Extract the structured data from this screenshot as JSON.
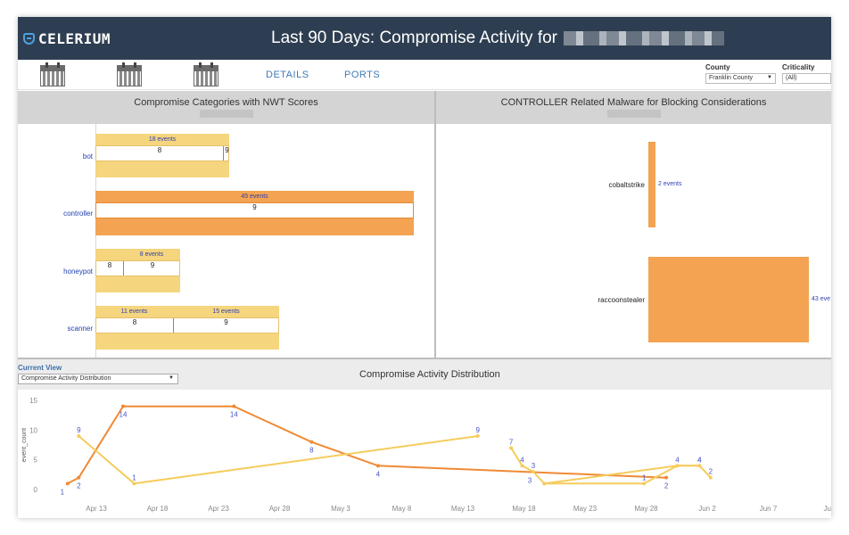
{
  "header": {
    "logo_text": "CELERIUM",
    "title": "Last 90 Days: Compromise Activity for"
  },
  "toolbar": {
    "calendar_icons": [
      "calendar-icon",
      "calendar-icon",
      "calendar-icon"
    ],
    "links": {
      "details": "DETAILS",
      "ports": "PORTS"
    },
    "county": {
      "label": "County",
      "value": "Franklin County"
    },
    "criticality": {
      "label": "Criticality",
      "value": "(All)"
    }
  },
  "left_panel": {
    "title": "Compromise Categories with NWT Scores",
    "categories": [
      {
        "label": "bot",
        "segments": [
          {
            "events": "18 events",
            "score": "8"
          }
        ],
        "extra_score": "9"
      },
      {
        "label": "controller",
        "segments": [
          {
            "events": "45 events",
            "score": "9"
          }
        ]
      },
      {
        "label": "honeypot",
        "segments": [
          {
            "events": "8 events",
            "score": "9"
          }
        ],
        "lead_score": "8"
      },
      {
        "label": "scanner",
        "segments": [
          {
            "events": "11 events",
            "score": "8"
          },
          {
            "events": "15 events",
            "score": "9"
          }
        ]
      }
    ]
  },
  "right_panel": {
    "title": "CONTROLLER Related Malware for Blocking Considerations",
    "malware": [
      {
        "label": "cobaltstrike",
        "events": "2 events",
        "count": 2
      },
      {
        "label": "raccoonstealer",
        "events": "43 eve",
        "count": 43
      }
    ]
  },
  "bottom": {
    "current_view_label": "Current View",
    "current_view_value": "Compromise Activity Distribution",
    "title": "Compromise Activity Distribution"
  },
  "colors": {
    "header_bg": "#2e3e52",
    "orange": "#f3a352",
    "yellow": "#f5d57e",
    "label_blue": "#2d3fb5"
  },
  "chart_data": {
    "type": "line",
    "title": "Compromise Activity Distribution",
    "ylabel": "event_count",
    "ylim": [
      0,
      15
    ],
    "yticks": [
      0,
      5,
      10,
      15
    ],
    "xtick_labels": [
      "Apr 13",
      "Apr 18",
      "Apr 23",
      "Apr 28",
      "May 3",
      "May 8",
      "May 13",
      "May 18",
      "May 23",
      "May 28",
      "Jun 2",
      "Jun 7",
      "Jun"
    ],
    "series": [
      {
        "name": "orange",
        "color": "#f08a35",
        "points": [
          [
            12,
            1
          ],
          [
            13,
            2
          ],
          [
            17,
            14
          ],
          [
            27,
            14
          ],
          [
            34,
            8
          ],
          [
            40,
            4
          ],
          [
            66,
            2
          ]
        ],
        "labels": [
          "1",
          "2",
          "14",
          "14",
          "8",
          "4",
          "2"
        ]
      },
      {
        "name": "yellow-a",
        "color": "#f5cc5c",
        "points": [
          [
            13,
            9
          ],
          [
            18,
            1
          ],
          [
            49,
            9
          ]
        ],
        "labels": [
          "9",
          "1",
          "9"
        ]
      },
      {
        "name": "yellow-b",
        "color": "#f5cc5c",
        "points": [
          [
            52,
            7
          ],
          [
            53,
            4
          ],
          [
            54,
            3
          ],
          [
            55,
            1
          ],
          [
            64,
            1
          ],
          [
            67,
            4
          ],
          [
            69,
            4
          ],
          [
            70,
            2
          ]
        ],
        "labels": [
          "7",
          "4",
          "3",
          "",
          "1",
          "4",
          "4",
          "2"
        ]
      },
      {
        "name": "yellow-c",
        "color": "#f5cc5c",
        "points": [
          [
            55,
            1
          ],
          [
            67,
            4
          ],
          [
            69,
            4
          ]
        ],
        "labels": [
          "",
          "",
          "4"
        ]
      }
    ],
    "extra_labels": [
      "3"
    ]
  }
}
